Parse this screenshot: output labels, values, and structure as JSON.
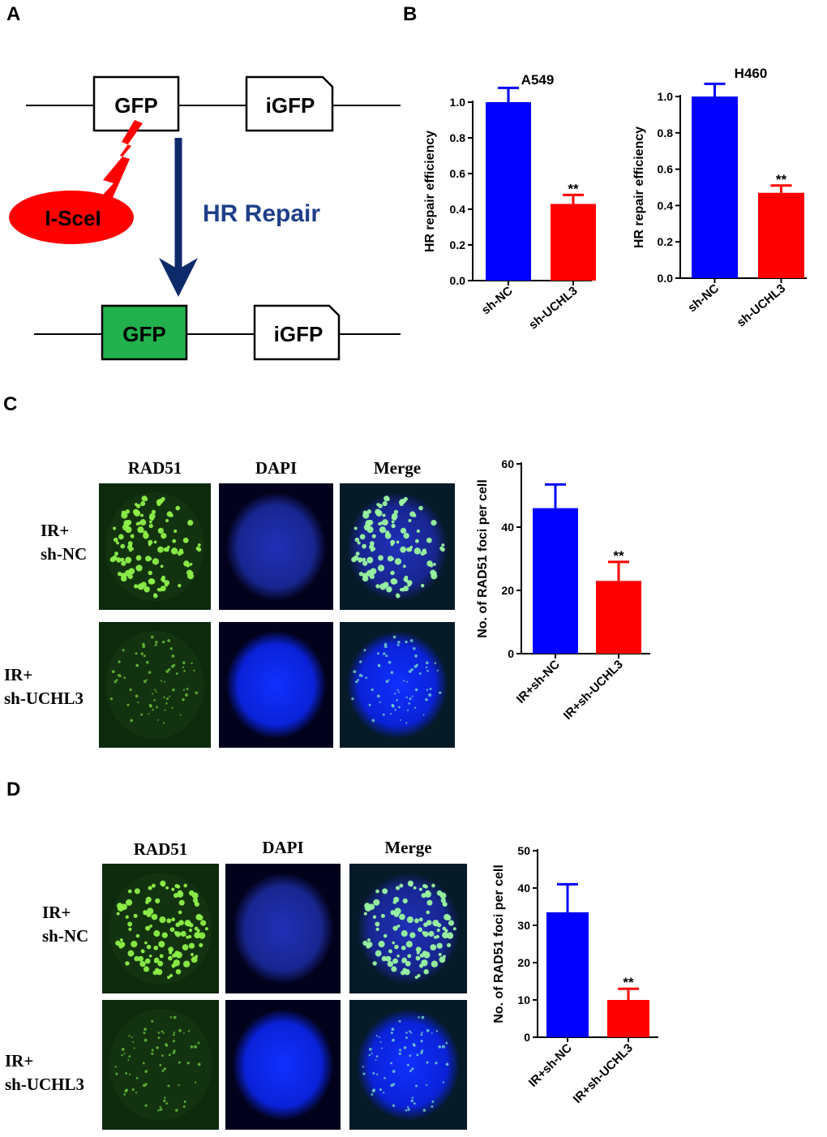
{
  "panels": {
    "A": "A",
    "B": "B",
    "C": "C",
    "D": "D"
  },
  "schematic": {
    "gfp_top": "GFP",
    "igfp_top": "iGFP",
    "enzyme": "I-SceI",
    "repair_label": "HR Repair",
    "gfp_bottom": "GFP",
    "igfp_bottom": "iGFP",
    "colors": {
      "enzyme": "#ff0000",
      "gfp_repaired": "#22b14c",
      "arrow": "#0d2a6b",
      "repair_text": "#1f3f8a"
    }
  },
  "micrographs": {
    "c": {
      "columns": [
        "RAD51",
        "DAPI",
        "Merge"
      ],
      "rows": [
        {
          "line1": "IR+",
          "line2": "sh-NC"
        },
        {
          "line1": "IR+",
          "line2": "sh-UCHL3"
        }
      ]
    },
    "d": {
      "columns": [
        "RAD51",
        "DAPI",
        "Merge"
      ],
      "rows": [
        {
          "line1": "IR+",
          "line2": "sh-NC"
        },
        {
          "line1": "IR+",
          "line2": "sh-UCHL3"
        }
      ]
    }
  },
  "chart_data": [
    {
      "id": "B-A549",
      "type": "bar",
      "title": "A549",
      "ylabel": "HR repair efficiency",
      "categories": [
        "sh-NC",
        "sh-UCHL3"
      ],
      "values": [
        1.0,
        0.43
      ],
      "errors": [
        0.08,
        0.05
      ],
      "significance": [
        "",
        "**"
      ],
      "colors": [
        "#0000ff",
        "#ff0000"
      ],
      "ylim": [
        0,
        1.0
      ],
      "yticks": [
        0.0,
        0.2,
        0.4,
        0.6,
        0.8,
        1.0
      ],
      "ytick_labels": [
        "0.0",
        "0.2",
        "0.4",
        "0.6",
        "0.8",
        "1.0"
      ]
    },
    {
      "id": "B-H460",
      "type": "bar",
      "title": "H460",
      "ylabel": "HR repair efficiency",
      "categories": [
        "sh-NC",
        "sh-UCHL3"
      ],
      "values": [
        1.0,
        0.47
      ],
      "errors": [
        0.07,
        0.04
      ],
      "significance": [
        "",
        "**"
      ],
      "colors": [
        "#0000ff",
        "#ff0000"
      ],
      "ylim": [
        0,
        1.0
      ],
      "yticks": [
        0.0,
        0.2,
        0.4,
        0.6,
        0.8,
        1.0
      ],
      "ytick_labels": [
        "0.0",
        "0.2",
        "0.4",
        "0.6",
        "0.8",
        "1.0"
      ]
    },
    {
      "id": "C-quant",
      "type": "bar",
      "title": "",
      "ylabel": "No. of RAD51 foci per cell",
      "categories": [
        "IR+sh-NC",
        "IR+sh-UCHL3"
      ],
      "values": [
        46,
        23
      ],
      "errors": [
        7.5,
        6
      ],
      "significance": [
        "",
        "**"
      ],
      "colors": [
        "#0000ff",
        "#ff0000"
      ],
      "ylim": [
        0,
        60
      ],
      "yticks": [
        0,
        20,
        40,
        60
      ],
      "ytick_labels": [
        "0",
        "20",
        "40",
        "60"
      ]
    },
    {
      "id": "D-quant",
      "type": "bar",
      "title": "",
      "ylabel": "No. of RAD51 foci per cell",
      "categories": [
        "IR+sh-NC",
        "IR+sh-UCHL3"
      ],
      "values": [
        33.5,
        10
      ],
      "errors": [
        7.5,
        3
      ],
      "significance": [
        "",
        "**"
      ],
      "colors": [
        "#0000ff",
        "#ff0000"
      ],
      "ylim": [
        0,
        50
      ],
      "yticks": [
        0,
        10,
        20,
        30,
        40,
        50
      ],
      "ytick_labels": [
        "0",
        "10",
        "20",
        "30",
        "40",
        "50"
      ]
    }
  ]
}
